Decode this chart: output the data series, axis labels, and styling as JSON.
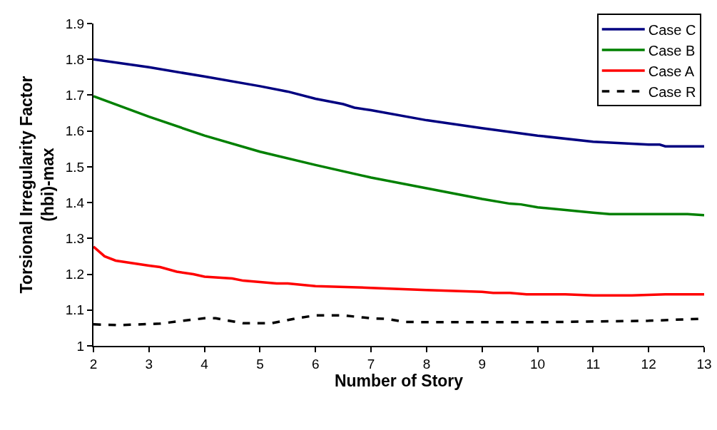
{
  "chart_data": {
    "type": "line",
    "xlabel": "Number of Story",
    "ylabel": "Torsional Irregularity Factor\n(hbi)-max",
    "xlim": [
      2,
      13
    ],
    "xticks": [
      2,
      3,
      4,
      5,
      6,
      7,
      8,
      9,
      10,
      11,
      12,
      13
    ],
    "ylim": [
      1,
      1.9
    ],
    "yticks": [
      1,
      1.1,
      1.2,
      1.3,
      1.4,
      1.5,
      1.6,
      1.7,
      1.8,
      1.9
    ],
    "legend": "top right",
    "marker": "none",
    "series": [
      {
        "name": "Case C",
        "color": "#000080",
        "line_style": "solid",
        "x": [
          2,
          3,
          4,
          5,
          5.5,
          6,
          6.5,
          6.7,
          7,
          8,
          9,
          10,
          11,
          12,
          12.2,
          12.3,
          13
        ],
        "values": [
          1.8,
          1.778,
          1.752,
          1.725,
          1.71,
          1.69,
          1.675,
          1.665,
          1.658,
          1.63,
          1.608,
          1.587,
          1.57,
          1.562,
          1.562,
          1.557,
          1.557
        ]
      },
      {
        "name": "Case B",
        "color": "#008000",
        "line_style": "solid",
        "x": [
          2,
          3,
          4,
          5,
          6,
          7,
          8,
          9,
          9.5,
          9.7,
          10,
          11,
          11.3,
          12,
          12.7,
          13
        ],
        "values": [
          1.697,
          1.64,
          1.587,
          1.542,
          1.505,
          1.47,
          1.44,
          1.41,
          1.397,
          1.395,
          1.387,
          1.372,
          1.368,
          1.368,
          1.368,
          1.365
        ]
      },
      {
        "name": "Case A",
        "color": "#ff0000",
        "line_style": "solid",
        "x": [
          2,
          2.2,
          2.4,
          3,
          3.2,
          3.5,
          3.8,
          4,
          4.5,
          4.7,
          5,
          5.3,
          5.5,
          6,
          7,
          8,
          9,
          9.2,
          9.5,
          9.8,
          10.5,
          11,
          11.7,
          12.3,
          13
        ],
        "values": [
          1.277,
          1.25,
          1.238,
          1.224,
          1.22,
          1.207,
          1.2,
          1.193,
          1.188,
          1.182,
          1.178,
          1.174,
          1.174,
          1.167,
          1.162,
          1.156,
          1.151,
          1.148,
          1.148,
          1.144,
          1.144,
          1.141,
          1.141,
          1.144,
          1.144
        ]
      },
      {
        "name": "Case R",
        "color": "#000000",
        "line_style": "dashed",
        "x": [
          2,
          2.5,
          3.2,
          3.5,
          4,
          4.2,
          4.7,
          5.2,
          5.7,
          6,
          6.5,
          7,
          7.3,
          7.6,
          8,
          10,
          11,
          12,
          13
        ],
        "values": [
          1.06,
          1.058,
          1.062,
          1.068,
          1.077,
          1.077,
          1.063,
          1.063,
          1.078,
          1.085,
          1.085,
          1.077,
          1.075,
          1.067,
          1.066,
          1.066,
          1.068,
          1.07,
          1.076
        ]
      }
    ]
  }
}
